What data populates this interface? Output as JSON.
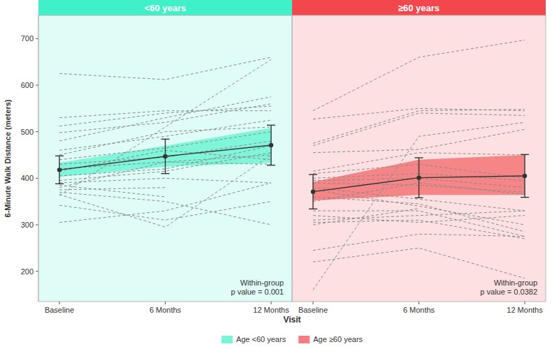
{
  "chart_data": {
    "type": "line",
    "x_label": "Visit",
    "y_label": "6-Minute Walk Distance (meters)",
    "categories": [
      "Baseline",
      "6 Months",
      "12 Months"
    ],
    "ylim": [
      135,
      750
    ],
    "yticks": [
      200,
      300,
      400,
      500,
      600,
      700
    ],
    "grid": false,
    "legend": "bottom",
    "panels": [
      {
        "title": "<60 years",
        "color": "#3ff0c8",
        "annotation": [
          "Within-group",
          "p value = 0.001"
        ],
        "band": {
          "name": "Age <60 years",
          "lower": [
            403,
            425,
            433
          ],
          "upper": [
            433,
            470,
            508
          ]
        },
        "mean": {
          "values": [
            418,
            447,
            471
          ],
          "error": [
            30,
            37,
            43
          ]
        },
        "series": [
          {
            "values": [
              625,
              612,
              660
            ]
          },
          {
            "values": [
              530,
              545,
              545
            ]
          },
          {
            "values": [
              512,
              540,
              555
            ]
          },
          {
            "values": [
              480,
              530,
              575
            ]
          },
          {
            "values": [
              498,
              520,
              560
            ]
          },
          {
            "values": [
              460,
              490,
              525
            ]
          },
          {
            "values": [
              440,
              465,
              500
            ]
          },
          {
            "values": [
              430,
              445,
              480
            ]
          },
          {
            "values": [
              415,
              460,
              440
            ]
          },
          {
            "values": [
              405,
              420,
              470
            ]
          },
          {
            "values": [
              395,
              415,
              455
            ]
          },
          {
            "values": [
              390,
              400,
              390
            ]
          },
          {
            "values": [
              380,
              435,
              450
            ]
          },
          {
            "values": [
              375,
              380,
              null
            ]
          },
          {
            "values": [
              370,
              350,
              300
            ]
          },
          {
            "values": [
              365,
              295,
              450
            ]
          },
          {
            "values": [
              363,
              510,
              655
            ]
          },
          {
            "values": [
              342,
              310,
              350
            ]
          },
          {
            "values": [
              305,
              330,
              390
            ]
          },
          {
            "values": [
              385,
              360,
              null
            ]
          },
          {
            "values": [
              420,
              435,
              430
            ]
          },
          {
            "values": [
              450,
              500,
              510
            ]
          }
        ]
      },
      {
        "title": "≥60 years",
        "color": "#f2474d",
        "annotation": [
          "Within-group",
          "p value = 0.0382"
        ],
        "band": {
          "name": "Age ≥60 years",
          "lower": [
            352,
            364,
            364
          ],
          "upper": [
            392,
            440,
            450
          ]
        },
        "mean": {
          "values": [
            371,
            401,
            405
          ],
          "error": [
            37,
            43,
            46
          ]
        },
        "series": [
          {
            "values": [
              545,
              660,
              697
            ]
          },
          {
            "values": [
              527,
              550,
              545
            ]
          },
          {
            "values": [
              475,
              545,
              548
            ]
          },
          {
            "values": [
              470,
              540,
              535
            ]
          },
          {
            "values": [
              455,
              462,
              505
            ]
          },
          {
            "values": [
              415,
              455,
              450
            ]
          },
          {
            "values": [
              410,
              430,
              400
            ]
          },
          {
            "values": [
              400,
              410,
              395
            ]
          },
          {
            "values": [
              395,
              400,
              380
            ]
          },
          {
            "values": [
              390,
              385,
              370
            ]
          },
          {
            "values": [
              380,
              355,
              330
            ]
          },
          {
            "values": [
              375,
              340,
              300
            ]
          },
          {
            "values": [
              360,
              345,
              285
            ]
          },
          {
            "values": [
              330,
              330,
              275
            ]
          },
          {
            "values": [
              320,
              305,
              320
            ]
          },
          {
            "values": [
              310,
              320,
              330
            ]
          },
          {
            "values": [
              305,
              310,
              270
            ]
          },
          {
            "values": [
              245,
              280,
              275
            ]
          },
          {
            "values": [
              220,
              250,
              185
            ]
          },
          {
            "values": [
              160,
              490,
              520
            ]
          },
          {
            "values": [
              350,
              390,
              365
            ]
          },
          {
            "values": [
              300,
              335,
              null
            ]
          }
        ]
      }
    ]
  }
}
